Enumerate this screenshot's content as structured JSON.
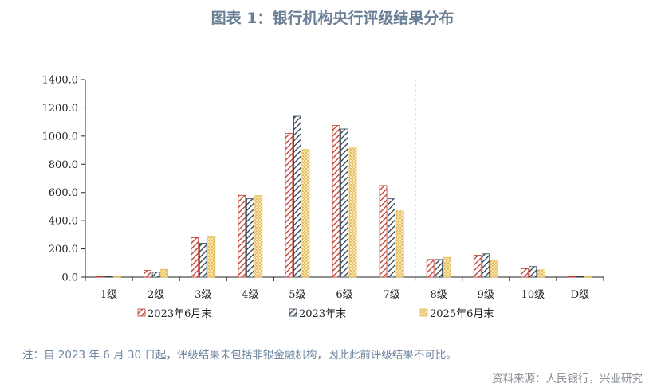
{
  "title": "图表 1：银行机构央行评级结果分布",
  "note": "注：自 2023 年 6 月 30 日起，评级结果未包括非银金融机构，因此此前评级结果不可比。",
  "source": "资料来源：人民银行，兴业研究",
  "chart_data": {
    "type": "bar",
    "categories": [
      "1级",
      "2级",
      "3级",
      "4级",
      "5级",
      "6级",
      "7级",
      "8级",
      "9级",
      "10级",
      "D级"
    ],
    "series": [
      {
        "name": "2023年6月末",
        "color": "#c0392b",
        "pattern": "diagonal-hatch",
        "values": [
          1,
          48,
          280,
          580,
          1020,
          1075,
          650,
          125,
          155,
          60,
          1
        ]
      },
      {
        "name": "2023年末",
        "color": "#2c3e50",
        "pattern": "diagonal-hatch",
        "values": [
          1,
          35,
          240,
          555,
          1140,
          1050,
          555,
          125,
          165,
          75,
          1
        ]
      },
      {
        "name": "2025年6月末",
        "color": "#e6b84a",
        "pattern": "cross-hatch",
        "values": [
          2,
          55,
          290,
          578,
          905,
          915,
          470,
          140,
          115,
          52,
          2
        ]
      }
    ],
    "y_ticks": [
      "0.0",
      "200.0",
      "400.0",
      "600.0",
      "800.0",
      "1000.0",
      "1200.0",
      "1400.0"
    ],
    "ylim": [
      0,
      1400
    ],
    "divider_after_category": "7级",
    "legend_position": "bottom",
    "grid": false
  }
}
